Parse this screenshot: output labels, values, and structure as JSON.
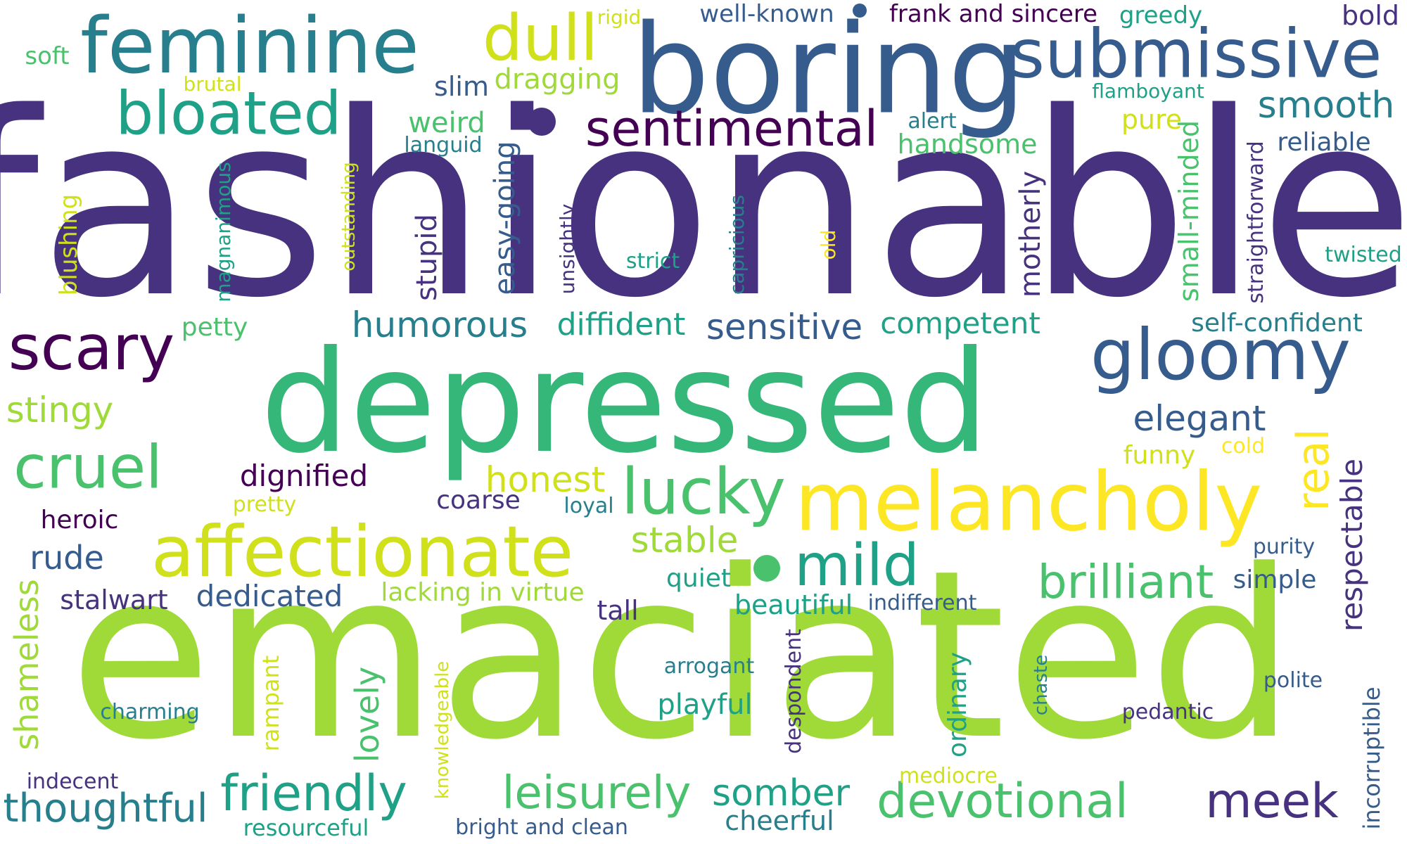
{
  "colors": {
    "c1": "#46327e",
    "c2": "#365c8d",
    "c3": "#277f8e",
    "c4": "#1fa187",
    "c5": "#4ac16d",
    "c6": "#a0da39",
    "c7": "#fde725",
    "c8": "#440154",
    "c9": "#d0e11c",
    "c10": "#35b779"
  },
  "words": [
    {
      "text": "fashionable",
      "c": "c1"
    },
    {
      "text": "emaciated",
      "c": "c6"
    },
    {
      "text": "depressed",
      "c": "c10"
    },
    {
      "text": "boring",
      "c": "c2"
    },
    {
      "text": "feminine",
      "c": "c3"
    },
    {
      "text": "submissive",
      "c": "c2"
    },
    {
      "text": "melancholy",
      "c": "c7"
    },
    {
      "text": "affectionate",
      "c": "c9"
    },
    {
      "text": "gloomy",
      "c": "c2"
    },
    {
      "text": "bloated",
      "c": "c4"
    },
    {
      "text": "dull",
      "c": "c9"
    },
    {
      "text": "scary",
      "c": "c8"
    },
    {
      "text": "cruel",
      "c": "c5"
    },
    {
      "text": "lucky",
      "c": "c5"
    },
    {
      "text": "mild",
      "c": "c4"
    },
    {
      "text": "sentimental",
      "c": "c8"
    },
    {
      "text": "meek",
      "c": "c1"
    },
    {
      "text": "devotional",
      "c": "c5"
    },
    {
      "text": "friendly",
      "c": "c4"
    },
    {
      "text": "brilliant",
      "c": "c5"
    },
    {
      "text": "leisurely",
      "c": "c5"
    },
    {
      "text": "thoughtful",
      "c": "c3"
    },
    {
      "text": "real",
      "c": "c7"
    },
    {
      "text": "smooth",
      "c": "c3"
    },
    {
      "text": "humorous",
      "c": "c3"
    },
    {
      "text": "sensitive",
      "c": "c2"
    },
    {
      "text": "somber",
      "c": "c4"
    },
    {
      "text": "honest",
      "c": "c9"
    },
    {
      "text": "elegant",
      "c": "c2"
    },
    {
      "text": "stable",
      "c": "c6"
    },
    {
      "text": "stingy",
      "c": "c6"
    },
    {
      "text": "dignified",
      "c": "c8"
    },
    {
      "text": "diffident",
      "c": "c4"
    },
    {
      "text": "competent",
      "c": "c4"
    },
    {
      "text": "self-confident",
      "c": "c3"
    },
    {
      "text": "handsome",
      "c": "c5"
    },
    {
      "text": "well-known",
      "c": "c2"
    },
    {
      "text": "frank and sincere",
      "c": "c8"
    },
    {
      "text": "greedy",
      "c": "c4"
    },
    {
      "text": "bold",
      "c": "c1"
    },
    {
      "text": "rude",
      "c": "c2"
    },
    {
      "text": "stalwart",
      "c": "c1"
    },
    {
      "text": "dedicated",
      "c": "c2"
    },
    {
      "text": "lacking in virtue",
      "c": "c6"
    },
    {
      "text": "beautiful",
      "c": "c4"
    },
    {
      "text": "quiet",
      "c": "c4"
    },
    {
      "text": "playful",
      "c": "c4"
    },
    {
      "text": "cheerful",
      "c": "c3"
    },
    {
      "text": "resourceful",
      "c": "c4"
    },
    {
      "text": "bright and clean",
      "c": "c2"
    },
    {
      "text": "charming",
      "c": "c3"
    },
    {
      "text": "arrogant",
      "c": "c3"
    },
    {
      "text": "polite",
      "c": "c2"
    },
    {
      "text": "pedantic",
      "c": "c1"
    },
    {
      "text": "reliable",
      "c": "c2"
    },
    {
      "text": "dragging",
      "c": "c6"
    },
    {
      "text": "slim",
      "c": "c2"
    },
    {
      "text": "weird",
      "c": "c5"
    },
    {
      "text": "languid",
      "c": "c3"
    },
    {
      "text": "soft",
      "c": "c5"
    },
    {
      "text": "rigid",
      "c": "c9"
    },
    {
      "text": "brutal",
      "c": "c9"
    },
    {
      "text": "flamboyant",
      "c": "c4"
    },
    {
      "text": "alert",
      "c": "c3"
    },
    {
      "text": "pure",
      "c": "c9"
    },
    {
      "text": "petty",
      "c": "c5"
    },
    {
      "text": "funny",
      "c": "c9"
    },
    {
      "text": "cold",
      "c": "c7"
    },
    {
      "text": "coarse",
      "c": "c1"
    },
    {
      "text": "loyal",
      "c": "c3"
    },
    {
      "text": "pretty",
      "c": "c9"
    },
    {
      "text": "heroic",
      "c": "c8"
    },
    {
      "text": "purity",
      "c": "c2"
    },
    {
      "text": "simple",
      "c": "c2"
    },
    {
      "text": "tall",
      "c": "c1"
    },
    {
      "text": "indifferent",
      "c": "c2"
    },
    {
      "text": "indecent",
      "c": "c1"
    },
    {
      "text": "mediocre",
      "c": "c9"
    },
    {
      "text": "strict",
      "c": "c4"
    },
    {
      "text": "twisted",
      "c": "c4"
    },
    {
      "text": "easy-going",
      "c": "c2"
    },
    {
      "text": "stupid",
      "c": "c1"
    },
    {
      "text": "motherly",
      "c": "c1"
    },
    {
      "text": "small-minded",
      "c": "c5"
    },
    {
      "text": "straightforward",
      "c": "c1"
    },
    {
      "text": "respectable",
      "c": "c1"
    },
    {
      "text": "shameless",
      "c": "c6"
    },
    {
      "text": "lovely",
      "c": "c5"
    },
    {
      "text": "incorruptible",
      "c": "c2"
    },
    {
      "text": "ordinary",
      "c": "c4"
    },
    {
      "text": "rampant",
      "c": "c9"
    },
    {
      "text": "despondent",
      "c": "c1"
    },
    {
      "text": "chaste",
      "c": "c3"
    },
    {
      "text": "knowledgeable",
      "c": "c9"
    },
    {
      "text": "blushing",
      "c": "c9"
    },
    {
      "text": "magnanimous",
      "c": "c4"
    },
    {
      "text": "outstanding",
      "c": "c9"
    },
    {
      "text": "unsightly",
      "c": "c1"
    },
    {
      "text": "capricious",
      "c": "c3"
    },
    {
      "text": "old",
      "c": "c7"
    }
  ]
}
